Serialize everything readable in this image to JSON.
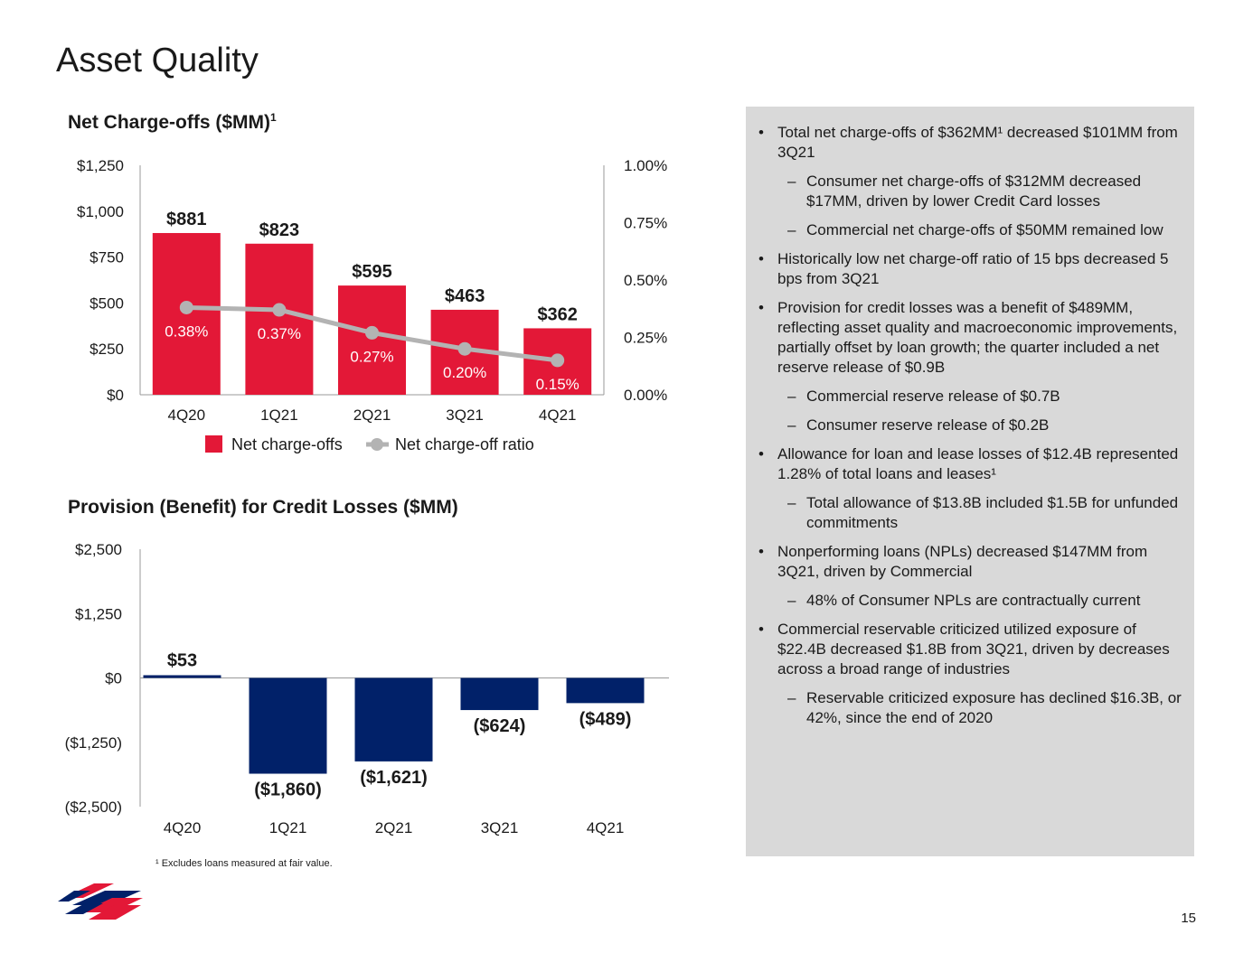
{
  "page": {
    "title": "Asset Quality",
    "page_number": "15",
    "footnote": "¹ Excludes loans measured at fair value."
  },
  "colors": {
    "bar_red": "#e31837",
    "bar_navy": "#012169",
    "line_gray": "#b3b3b3",
    "panel_gray": "#d9d9d9"
  },
  "chart_data": [
    {
      "type": "bar",
      "title": "Net Charge-offs ($MM)",
      "title_sup": "1",
      "categories": [
        "4Q20",
        "1Q21",
        "2Q21",
        "3Q21",
        "4Q21"
      ],
      "series": [
        {
          "name": "Net charge-offs",
          "type": "bar",
          "axis": "left",
          "values": [
            881,
            823,
            595,
            463,
            362
          ],
          "labels": [
            "$881",
            "$823",
            "$595",
            "$463",
            "$362"
          ]
        },
        {
          "name": "Net charge-off ratio",
          "type": "line",
          "axis": "right",
          "values": [
            0.38,
            0.37,
            0.27,
            0.2,
            0.15
          ],
          "labels": [
            "0.38%",
            "0.37%",
            "0.27%",
            "0.20%",
            "0.15%"
          ]
        }
      ],
      "y_ticks": [
        "$0",
        "$250",
        "$500",
        "$750",
        "$1,000",
        "$1,250"
      ],
      "ylim": [
        0,
        1250
      ],
      "y2_ticks": [
        "0.00%",
        "0.25%",
        "0.50%",
        "0.75%",
        "1.00%"
      ],
      "y2lim": [
        0,
        1.0
      ],
      "legend": [
        "Net charge-offs",
        "Net charge-off ratio"
      ]
    },
    {
      "type": "bar",
      "title": "Provision (Benefit) for Credit Losses ($MM)",
      "categories": [
        "4Q20",
        "1Q21",
        "2Q21",
        "3Q21",
        "4Q21"
      ],
      "values": [
        53,
        -1860,
        -1621,
        -624,
        -489
      ],
      "labels": [
        "$53",
        "($1,860)",
        "($1,621)",
        "($624)",
        "($489)"
      ],
      "y_ticks": [
        "($2,500)",
        "($1,250)",
        "$0",
        "$1,250",
        "$2,500"
      ],
      "ylim": [
        -2500,
        2500
      ]
    }
  ],
  "panel": {
    "bullets": [
      {
        "level": 1,
        "text": "Total net charge-offs of $362MM¹ decreased $101MM from 3Q21"
      },
      {
        "level": 2,
        "text": "Consumer net charge-offs of $312MM decreased $17MM, driven by lower Credit Card losses"
      },
      {
        "level": 2,
        "text": "Commercial net charge-offs of $50MM remained low"
      },
      {
        "level": 1,
        "text": "Historically low net charge-off ratio of 15 bps decreased 5 bps from 3Q21"
      },
      {
        "level": 1,
        "text": "Provision for credit losses was a benefit of $489MM, reflecting asset quality and macroeconomic improvements, partially offset by loan growth; the quarter included a net reserve release of $0.9B"
      },
      {
        "level": 2,
        "text": "Commercial reserve release of $0.7B"
      },
      {
        "level": 2,
        "text": "Consumer reserve release of $0.2B"
      },
      {
        "level": 1,
        "text": "Allowance for loan and lease losses of $12.4B represented 1.28% of total loans and leases¹"
      },
      {
        "level": 2,
        "text": "Total allowance of $13.8B included $1.5B for unfunded commitments"
      },
      {
        "level": 1,
        "text": "Nonperforming loans (NPLs) decreased $147MM from 3Q21, driven by Commercial"
      },
      {
        "level": 2,
        "text": "48% of Consumer NPLs are contractually current"
      },
      {
        "level": 1,
        "text": "Commercial reservable criticized utilized exposure of $22.4B decreased $1.8B from 3Q21, driven by decreases across a broad range of industries"
      },
      {
        "level": 2,
        "text": "Reservable criticized exposure has declined $16.3B, or 42%, since the end of 2020"
      }
    ]
  }
}
